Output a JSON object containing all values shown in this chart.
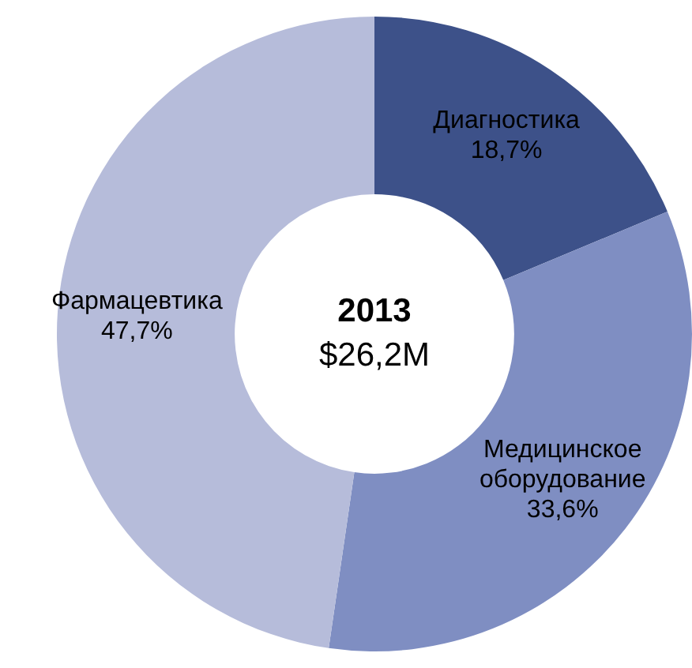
{
  "chart_data": {
    "type": "donut",
    "title": "2013",
    "subtitle": "$26,2M",
    "categories": [
      "Диагностика",
      "Медицинское оборудование",
      "Фармацевтика"
    ],
    "values": [
      18.7,
      33.6,
      47.7
    ],
    "value_labels": [
      "18,7%",
      "33,6%",
      "47,7%"
    ],
    "colors": [
      "#3d5189",
      "#7f8ec2",
      "#b6bcda"
    ],
    "legend": false
  }
}
